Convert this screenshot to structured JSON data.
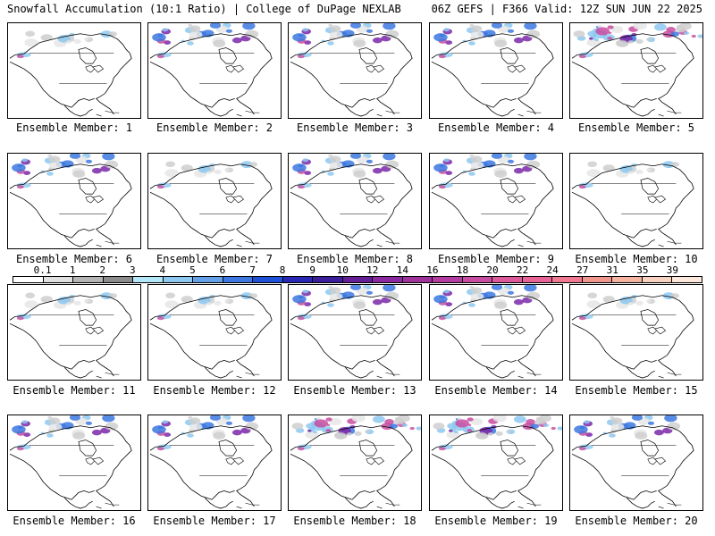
{
  "header": {
    "title_left": "Snowfall Accumulation (10:1 Ratio) | College of DuPage NEXLAB",
    "title_right": "06Z GEFS | F366 Valid: 12Z SUN JUN 22 2025"
  },
  "panels": [
    {
      "caption": "Ensemble Member: 1",
      "snow": "light"
    },
    {
      "caption": "Ensemble Member: 2",
      "snow": "moderate"
    },
    {
      "caption": "Ensemble Member: 3",
      "snow": "moderate"
    },
    {
      "caption": "Ensemble Member: 4",
      "snow": "moderate"
    },
    {
      "caption": "Ensemble Member: 5",
      "snow": "heavy"
    },
    {
      "caption": "Ensemble Member: 6",
      "snow": "moderate"
    },
    {
      "caption": "Ensemble Member: 7",
      "snow": "light"
    },
    {
      "caption": "Ensemble Member: 8",
      "snow": "moderate"
    },
    {
      "caption": "Ensemble Member: 9",
      "snow": "moderate"
    },
    {
      "caption": "Ensemble Member: 10",
      "snow": "light"
    },
    {
      "caption": "Ensemble Member: 11",
      "snow": "light"
    },
    {
      "caption": "Ensemble Member: 12",
      "snow": "light"
    },
    {
      "caption": "Ensemble Member: 13",
      "snow": "moderate"
    },
    {
      "caption": "Ensemble Member: 14",
      "snow": "moderate"
    },
    {
      "caption": "Ensemble Member: 15",
      "snow": "light"
    },
    {
      "caption": "Ensemble Member: 16",
      "snow": "moderate"
    },
    {
      "caption": "Ensemble Member: 17",
      "snow": "moderate"
    },
    {
      "caption": "Ensemble Member: 18",
      "snow": "heavy"
    },
    {
      "caption": "Ensemble Member: 19",
      "snow": "heavy"
    },
    {
      "caption": "Ensemble Member: 20",
      "snow": "moderate"
    }
  ],
  "colorbar": {
    "labels": [
      "0.1",
      "1",
      "2",
      "3",
      "4",
      "5",
      "6",
      "7",
      "8",
      "9",
      "10",
      "12",
      "14",
      "16",
      "18",
      "20",
      "22",
      "24",
      "27",
      "31",
      "35",
      "39"
    ],
    "colors": [
      "#ffffff",
      "#e0e0e0",
      "#b4b4b4",
      "#8c8c8c",
      "#b4e8f8",
      "#8cc8f0",
      "#64a0e8",
      "#3c78e0",
      "#1e50d8",
      "#2828b4",
      "#3c1e9c",
      "#641e96",
      "#8c28a0",
      "#a0329c",
      "#b43ca0",
      "#c84ca0",
      "#dc5a9c",
      "#e86496",
      "#f07890",
      "#f0968c",
      "#f4b4a0",
      "#f8d2c0",
      "#fce8dc"
    ]
  }
}
